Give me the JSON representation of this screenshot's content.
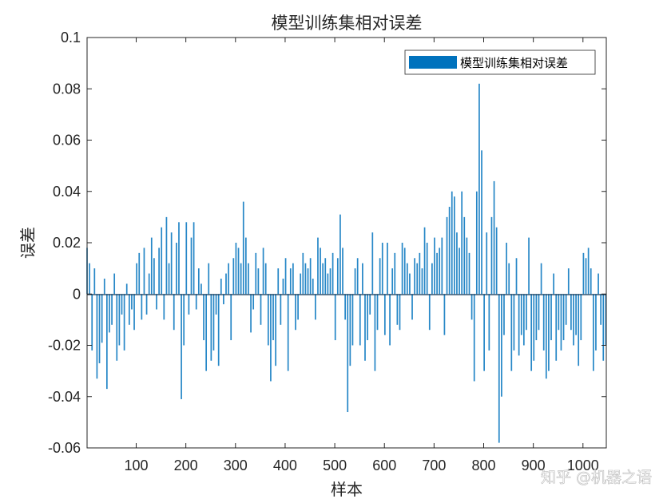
{
  "chart_data": {
    "type": "bar",
    "title": "模型训练集相对误差",
    "xlabel": "样本",
    "ylabel": "误差",
    "xlim": [
      1,
      1047
    ],
    "ylim": [
      -0.06,
      0.1
    ],
    "xticks": [
      100,
      200,
      300,
      400,
      500,
      600,
      700,
      800,
      900,
      1000
    ],
    "xtick_labels": [
      "100",
      "200",
      "300",
      "400",
      "500",
      "600",
      "700",
      "800",
      "900",
      "1000"
    ],
    "yticks": [
      -0.06,
      -0.04,
      -0.02,
      0,
      0.02,
      0.04,
      0.06,
      0.08,
      0.1
    ],
    "ytick_labels": [
      "-0.06",
      "-0.04",
      "-0.02",
      "0",
      "0.02",
      "0.04",
      "0.06",
      "0.08",
      "0.1"
    ],
    "legend": {
      "label": "模型训练集相对误差",
      "position": "top-right"
    },
    "grid": false,
    "series": [
      {
        "name": "模型训练集相对误差",
        "color": "#0072BD",
        "sample_step": 5,
        "x_start": 1,
        "values": [
          0.018,
          0.012,
          -0.022,
          0.01,
          -0.033,
          -0.027,
          -0.019,
          0.006,
          -0.037,
          -0.015,
          -0.012,
          0.008,
          -0.026,
          -0.02,
          -0.008,
          -0.022,
          0.004,
          -0.012,
          -0.006,
          -0.014,
          0.012,
          0.016,
          -0.01,
          0.018,
          -0.008,
          0.008,
          0.022,
          0.014,
          -0.006,
          0.018,
          0.026,
          -0.01,
          0.03,
          0.012,
          0.024,
          -0.014,
          0.02,
          0.028,
          -0.041,
          -0.02,
          0.028,
          -0.008,
          0.022,
          0.028,
          -0.006,
          0.01,
          0.004,
          -0.018,
          -0.03,
          0.012,
          -0.026,
          -0.022,
          -0.008,
          -0.028,
          0.006,
          -0.004,
          0.008,
          0.012,
          -0.018,
          0.014,
          0.02,
          0.018,
          0.012,
          0.036,
          0.022,
          0.012,
          -0.015,
          -0.006,
          0.016,
          0.01,
          -0.012,
          0.018,
          0.012,
          -0.02,
          -0.034,
          -0.018,
          -0.028,
          0.01,
          -0.012,
          0.006,
          0.014,
          -0.03,
          0.01,
          0.012,
          -0.014,
          -0.01,
          0.008,
          0.016,
          0.012,
          0.01,
          0.014,
          0.006,
          -0.01,
          0.022,
          0.018,
          0.012,
          0.014,
          0.008,
          0.01,
          0.016,
          -0.018,
          0.014,
          0.031,
          0.018,
          -0.01,
          -0.046,
          -0.028,
          -0.02,
          0.01,
          0.014,
          -0.02,
          0.012,
          -0.026,
          -0.018,
          -0.008,
          0.024,
          -0.03,
          -0.014,
          0.014,
          0.02,
          -0.016,
          0.02,
          -0.02,
          0.01,
          0.016,
          -0.012,
          -0.014,
          0.02,
          0.018,
          0.012,
          0.008,
          -0.01,
          0.014,
          0.012,
          0.016,
          0.01,
          0.026,
          0.02,
          -0.014,
          0.012,
          0.022,
          0.016,
          0.018,
          0.022,
          -0.016,
          0.03,
          0.034,
          0.04,
          0.038,
          0.024,
          0.018,
          0.04,
          0.03,
          0.022,
          0.016,
          -0.01,
          -0.034,
          0.04,
          0.082,
          0.056,
          -0.03,
          0.024,
          -0.022,
          0.03,
          0.044,
          0.026,
          -0.058,
          -0.04,
          -0.016,
          0.02,
          0.012,
          -0.03,
          -0.022,
          0.014,
          -0.024,
          -0.016,
          -0.02,
          -0.014,
          0.022,
          -0.03,
          -0.026,
          -0.018,
          -0.014,
          0.012,
          -0.022,
          -0.033,
          -0.03,
          -0.018,
          0.008,
          -0.026,
          -0.014,
          -0.022,
          -0.018,
          -0.012,
          0.01,
          -0.014,
          -0.02,
          -0.016,
          -0.028,
          -0.018,
          0.016,
          0.014,
          0.018,
          0.01,
          -0.03,
          -0.022,
          0.008,
          -0.012,
          -0.026,
          -0.02
        ]
      }
    ]
  },
  "watermark": {
    "text": "知乎 @机器之语"
  }
}
